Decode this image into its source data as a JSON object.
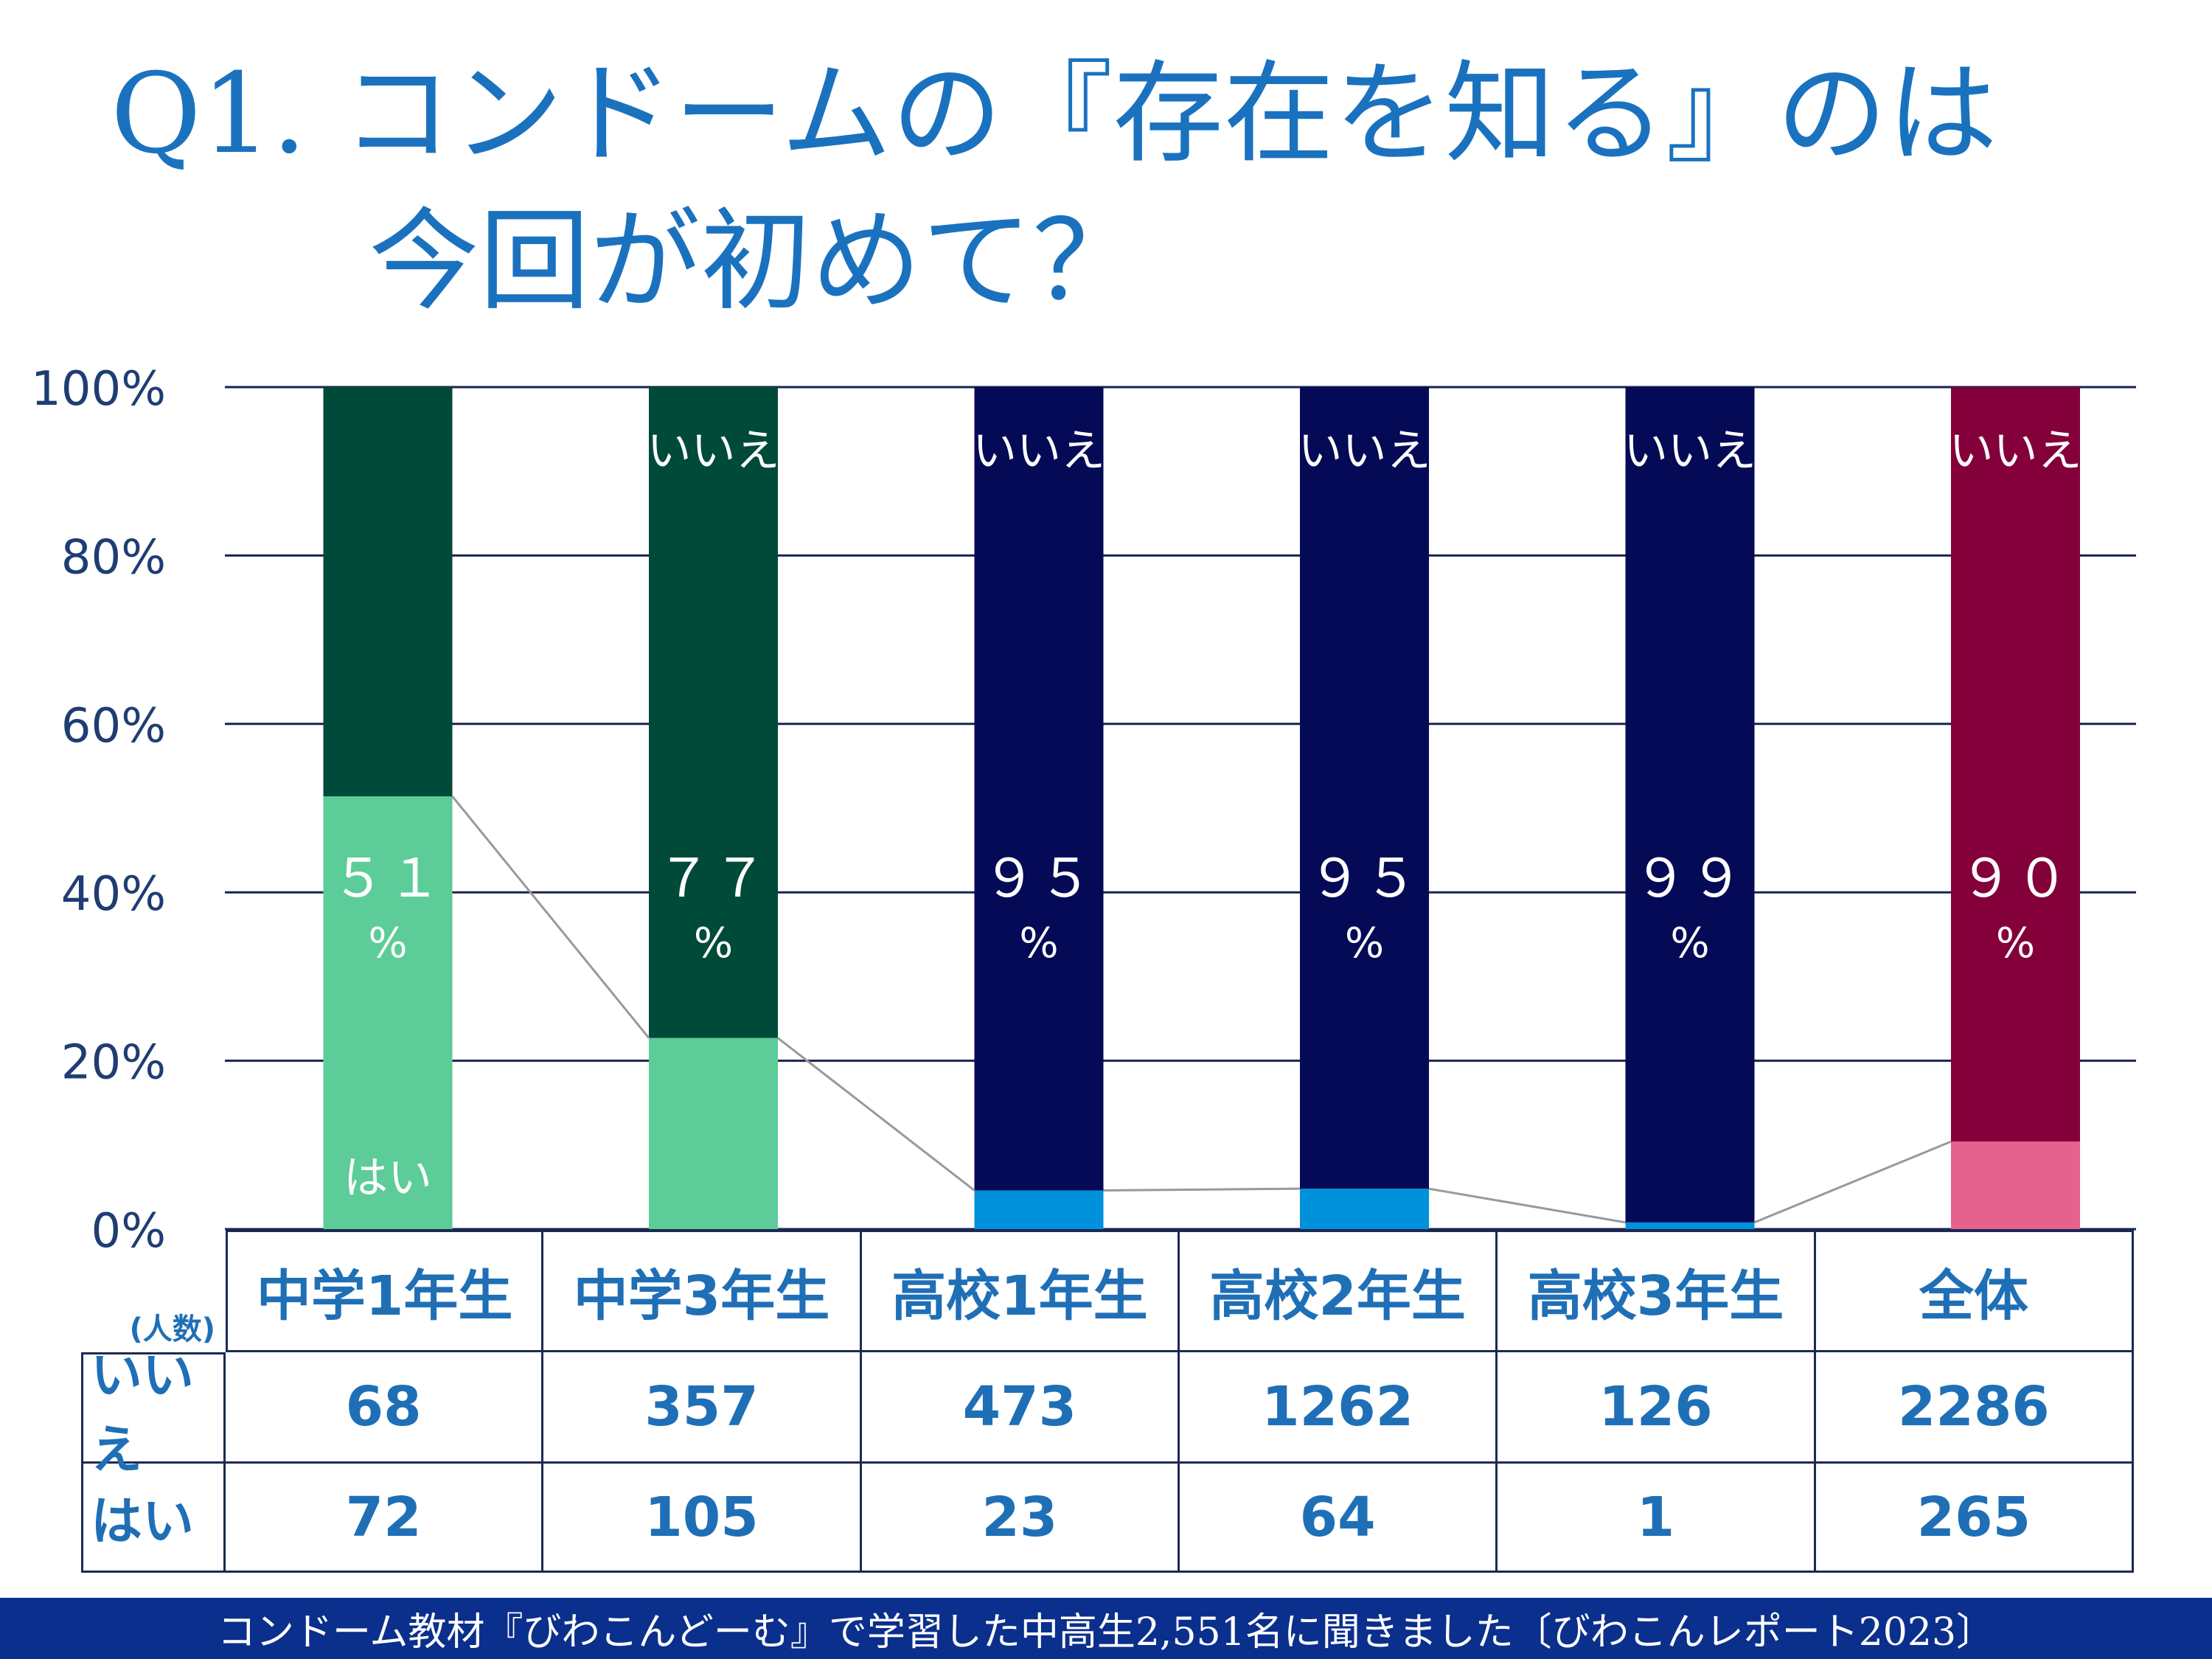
{
  "title": {
    "line1": "Q1. コンドームの『存在を知る』のは",
    "line2": "今回が初めて？"
  },
  "chart_data": {
    "type": "bar",
    "stacked": true,
    "ylim": [
      0,
      100
    ],
    "yticks": [
      "0%",
      "20%",
      "40%",
      "60%",
      "80%",
      "100%"
    ],
    "grid": true,
    "categories": [
      "中学1年生",
      "中学3年生",
      "高校1年生",
      "高校2年生",
      "高校3年生",
      "全体"
    ],
    "series": [
      {
        "name": "はい",
        "values": [
          51.4,
          22.7,
          4.6,
          4.8,
          0.8,
          10.4
        ]
      },
      {
        "name": "いいえ",
        "values": [
          48.6,
          77.3,
          95.4,
          95.2,
          99.2,
          89.6
        ]
      }
    ],
    "bar_labels_top": [
      "",
      "いいえ",
      "いいえ",
      "いいえ",
      "いいえ",
      "いいえ"
    ],
    "bar_labels_bottom": [
      "はい",
      "",
      "",
      "",
      "",
      ""
    ],
    "pct_numbers": [
      "５１",
      "７７",
      "９５",
      "９５",
      "９９",
      "９０"
    ],
    "pct_sign": "%",
    "colors": {
      "yes": [
        "#5ccc99",
        "#5ccc99",
        "#0091dc",
        "#0091dc",
        "#0091dc",
        "#e5628e"
      ],
      "no": [
        "#004a3a",
        "#004a3a",
        "#050a56",
        "#050a56",
        "#050a56",
        "#84003a"
      ],
      "grid": "#1a2350",
      "axis_text": "#1e3d73",
      "connector": "#999999"
    }
  },
  "table": {
    "unit": "(人数)",
    "headers": [
      "中学1年生",
      "中学3年生",
      "高校1年生",
      "高校2年生",
      "高校3年生",
      "全体"
    ],
    "rows": [
      {
        "label": "いいえ",
        "values": [
          "68",
          "357",
          "473",
          "1262",
          "126",
          "2286"
        ]
      },
      {
        "label": "はい",
        "values": [
          "72",
          "105",
          "23",
          "64",
          "1",
          "265"
        ]
      }
    ]
  },
  "footer": "コンドーム教材『びわこんどーむ』で学習した中高生2,551名に聞きました〔びわこんレポート2023〕"
}
